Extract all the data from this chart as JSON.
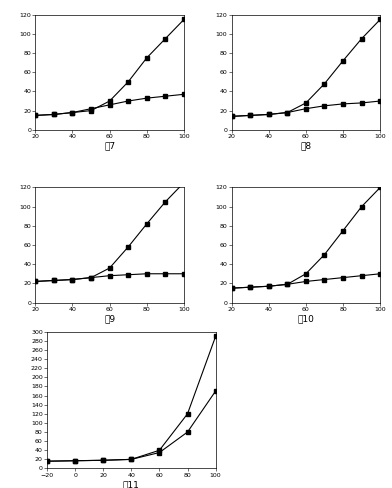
{
  "figures": [
    {
      "label": "图7",
      "xlim": [
        20,
        100
      ],
      "ylim": [
        0,
        120
      ],
      "yticks": [
        0,
        20,
        40,
        60,
        80,
        100,
        120
      ],
      "xticks": [
        20,
        40,
        60,
        80,
        100
      ],
      "curve1_x": [
        20,
        30,
        40,
        50,
        60,
        70,
        80,
        90,
        100
      ],
      "curve1_y": [
        15,
        16,
        18,
        20,
        30,
        50,
        75,
        95,
        115
      ],
      "curve2_x": [
        20,
        30,
        40,
        50,
        60,
        70,
        80,
        90,
        100
      ],
      "curve2_y": [
        15,
        16,
        18,
        22,
        26,
        30,
        33,
        35,
        37
      ]
    },
    {
      "label": "图8",
      "xlim": [
        20,
        100
      ],
      "ylim": [
        0,
        120
      ],
      "yticks": [
        0,
        20,
        40,
        60,
        80,
        100,
        120
      ],
      "xticks": [
        20,
        40,
        60,
        80,
        100
      ],
      "curve1_x": [
        20,
        30,
        40,
        50,
        60,
        70,
        80,
        90,
        100
      ],
      "curve1_y": [
        14,
        15,
        16,
        18,
        28,
        48,
        72,
        95,
        115
      ],
      "curve2_x": [
        20,
        30,
        40,
        50,
        60,
        70,
        80,
        90,
        100
      ],
      "curve2_y": [
        14,
        15,
        16,
        18,
        22,
        25,
        27,
        28,
        30
      ]
    },
    {
      "label": "图9",
      "xlim": [
        20,
        100
      ],
      "ylim": [
        0,
        120
      ],
      "yticks": [
        0,
        20,
        40,
        60,
        80,
        100,
        120
      ],
      "xticks": [
        20,
        40,
        60,
        80,
        100
      ],
      "curve1_x": [
        20,
        30,
        40,
        50,
        60,
        70,
        80,
        90,
        100
      ],
      "curve1_y": [
        22,
        23,
        24,
        26,
        36,
        58,
        82,
        105,
        125
      ],
      "curve2_x": [
        20,
        30,
        40,
        50,
        60,
        70,
        80,
        90,
        100
      ],
      "curve2_y": [
        22,
        23,
        24,
        26,
        28,
        29,
        30,
        30,
        30
      ]
    },
    {
      "label": "图10",
      "xlim": [
        20,
        100
      ],
      "ylim": [
        0,
        120
      ],
      "yticks": [
        0,
        20,
        40,
        60,
        80,
        100,
        120
      ],
      "xticks": [
        20,
        40,
        60,
        80,
        100
      ],
      "curve1_x": [
        20,
        30,
        40,
        50,
        60,
        70,
        80,
        90,
        100
      ],
      "curve1_y": [
        15,
        16,
        17,
        19,
        30,
        50,
        75,
        100,
        120
      ],
      "curve2_x": [
        20,
        30,
        40,
        50,
        60,
        70,
        80,
        90,
        100
      ],
      "curve2_y": [
        15,
        16,
        17,
        19,
        22,
        24,
        26,
        28,
        30
      ]
    },
    {
      "label": "图11",
      "xlim": [
        -20,
        100
      ],
      "ylim": [
        0,
        300
      ],
      "yticks": [
        0,
        20,
        40,
        60,
        80,
        100,
        120,
        140,
        160,
        180,
        200,
        220,
        240,
        260,
        280,
        300
      ],
      "xticks": [
        -20,
        0,
        20,
        40,
        60,
        80,
        100
      ],
      "curve1_x": [
        -20,
        0,
        20,
        40,
        60,
        80,
        100
      ],
      "curve1_y": [
        16,
        17,
        18,
        20,
        40,
        120,
        290
      ],
      "curve2_x": [
        -20,
        0,
        20,
        40,
        60,
        80,
        100
      ],
      "curve2_y": [
        16,
        17,
        18,
        20,
        35,
        80,
        170
      ]
    }
  ],
  "line_color": "black",
  "marker": "s",
  "marker_size": 2.5,
  "line_width": 0.8,
  "label_fontsize": 6.5,
  "tick_fontsize": 4.5,
  "label_font": "DejaVu Sans"
}
